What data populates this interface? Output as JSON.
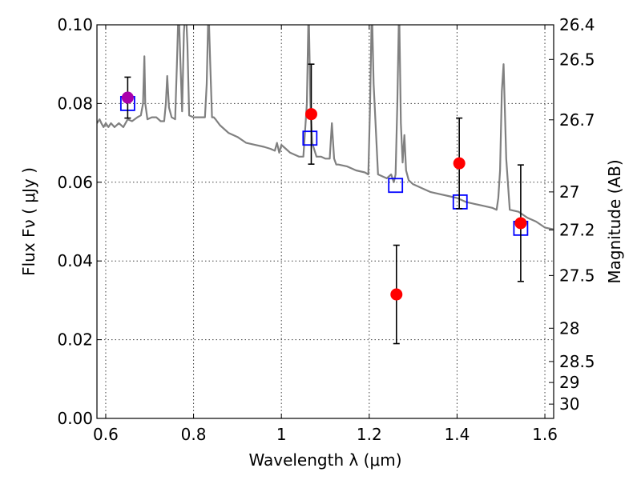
{
  "chart_data": {
    "type": "scatter",
    "xlabel": "Wavelength  λ (μm)",
    "ylabel": "Flux  Fν  ( μJy )",
    "ylabel2": "Magnitude (AB)",
    "xlim": [
      0.58,
      1.62
    ],
    "ylim": [
      0.0,
      0.1
    ],
    "x_ticks": [
      0.6,
      0.8,
      1.0,
      1.2,
      1.4,
      1.6
    ],
    "x_tick_labels": [
      "0.6",
      "0.8",
      "1",
      "1.2",
      "1.4",
      "1.6"
    ],
    "y_ticks": [
      0.0,
      0.02,
      0.04,
      0.06,
      0.08,
      0.1
    ],
    "y_tick_labels": [
      "0.00",
      "0.02",
      "0.04",
      "0.06",
      "0.08",
      "0.10"
    ],
    "mag_ticks": [
      26.4,
      26.5,
      26.7,
      27,
      27.2,
      27.5,
      28,
      28.5,
      29,
      30
    ],
    "mag_tick_labels": [
      "26.4",
      "26.5",
      "26.7",
      "27",
      "27.2",
      "27.5",
      "28",
      "28.5",
      "29",
      "30"
    ],
    "grid": true,
    "colors": {
      "model": "#808080",
      "observed": "#ff0000",
      "observed_first": "#aa00aa",
      "synthetic": "#0000ff",
      "errorbar": "#000000"
    },
    "observed": {
      "x": [
        0.65,
        1.068,
        1.262,
        1.405,
        1.545
      ],
      "y": [
        0.0815,
        0.0773,
        0.0315,
        0.0648,
        0.0496
      ],
      "yerr": [
        0.0052,
        0.0127,
        0.0125,
        0.0115,
        0.0148
      ]
    },
    "synthetic": {
      "x": [
        0.65,
        1.065,
        1.26,
        1.407,
        1.545
      ],
      "y": [
        0.08,
        0.0712,
        0.0592,
        0.055,
        0.0483
      ]
    },
    "model_spectrum": {
      "x": [
        0.58,
        0.586,
        0.59,
        0.595,
        0.6,
        0.606,
        0.612,
        0.62,
        0.63,
        0.64,
        0.65,
        0.66,
        0.672,
        0.68,
        0.685,
        0.688,
        0.69,
        0.695,
        0.705,
        0.715,
        0.725,
        0.733,
        0.737,
        0.74,
        0.744,
        0.75,
        0.758,
        0.762,
        0.766,
        0.77,
        0.774,
        0.778,
        0.782,
        0.786,
        0.79,
        0.8,
        0.815,
        0.826,
        0.83,
        0.834,
        0.838,
        0.842,
        0.846,
        0.85,
        0.86,
        0.88,
        0.9,
        0.92,
        0.94,
        0.96,
        0.975,
        0.985,
        0.99,
        0.995,
        1.0,
        1.005,
        1.01,
        1.02,
        1.04,
        1.05,
        1.058,
        1.062,
        1.066,
        1.07,
        1.08,
        1.09,
        1.1,
        1.11,
        1.115,
        1.12,
        1.125,
        1.13,
        1.15,
        1.17,
        1.19,
        1.198,
        1.202,
        1.206,
        1.21,
        1.22,
        1.24,
        1.25,
        1.256,
        1.26,
        1.264,
        1.268,
        1.272,
        1.276,
        1.28,
        1.284,
        1.29,
        1.3,
        1.32,
        1.34,
        1.36,
        1.38,
        1.4,
        1.42,
        1.44,
        1.46,
        1.48,
        1.49,
        1.494,
        1.498,
        1.502,
        1.506,
        1.512,
        1.52,
        1.54,
        1.56,
        1.58,
        1.6,
        1.62
      ],
      "y": [
        0.075,
        0.076,
        0.075,
        0.074,
        0.075,
        0.074,
        0.075,
        0.074,
        0.075,
        0.074,
        0.076,
        0.0755,
        0.0765,
        0.077,
        0.08,
        0.092,
        0.08,
        0.076,
        0.0765,
        0.0765,
        0.0755,
        0.0755,
        0.08,
        0.087,
        0.079,
        0.0765,
        0.076,
        0.09,
        0.105,
        0.091,
        0.078,
        0.098,
        0.105,
        0.095,
        0.077,
        0.0765,
        0.0765,
        0.0765,
        0.085,
        0.105,
        0.09,
        0.0765,
        0.0765,
        0.076,
        0.0745,
        0.0725,
        0.0715,
        0.07,
        0.0695,
        0.069,
        0.0685,
        0.068,
        0.07,
        0.0675,
        0.0695,
        0.069,
        0.0685,
        0.0675,
        0.0665,
        0.0665,
        0.08,
        0.105,
        0.08,
        0.07,
        0.0665,
        0.0665,
        0.066,
        0.066,
        0.075,
        0.066,
        0.0645,
        0.0645,
        0.064,
        0.063,
        0.0625,
        0.062,
        0.08,
        0.105,
        0.085,
        0.062,
        0.061,
        0.062,
        0.06,
        0.062,
        0.08,
        0.105,
        0.075,
        0.065,
        0.072,
        0.063,
        0.0605,
        0.0595,
        0.0585,
        0.0575,
        0.057,
        0.0565,
        0.056,
        0.055,
        0.0545,
        0.054,
        0.0535,
        0.053,
        0.056,
        0.063,
        0.083,
        0.09,
        0.066,
        0.053,
        0.0525,
        0.051,
        0.05,
        0.0485,
        0.048
      ]
    }
  }
}
